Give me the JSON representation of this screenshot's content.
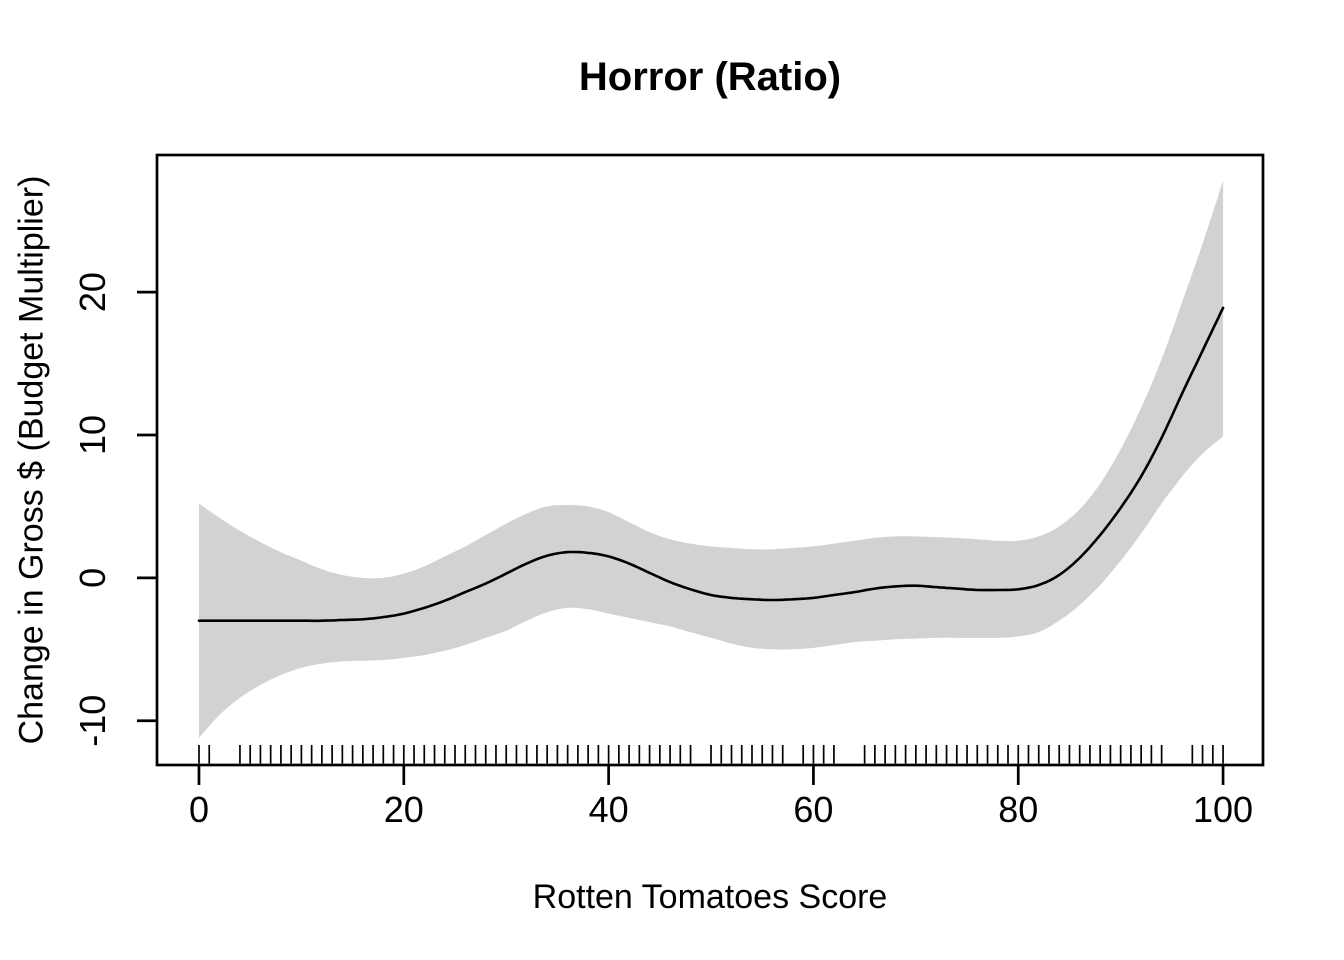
{
  "chart_data": {
    "type": "line",
    "subtype": "gam-smooth-with-confidence-band-and-rug",
    "title": "Horror (Ratio)",
    "xlabel": "Rotten Tomatoes Score",
    "ylabel": "Change in Gross $ (Budget Multiplier)",
    "x_ticks": [
      0,
      20,
      40,
      60,
      80,
      100
    ],
    "y_ticks": [
      -10,
      0,
      10,
      20
    ],
    "xlim": [
      -4.1,
      103.9
    ],
    "ylim": [
      -13.1,
      29.6
    ],
    "grid": false,
    "legend": "none",
    "x": [
      0,
      2,
      4,
      6,
      8,
      10,
      12,
      14,
      16,
      18,
      20,
      22,
      24,
      26,
      28,
      30,
      32,
      34,
      36,
      38,
      40,
      42,
      44,
      46,
      48,
      50,
      52,
      54,
      56,
      58,
      60,
      62,
      64,
      66,
      68,
      70,
      72,
      74,
      76,
      78,
      80,
      82,
      84,
      86,
      88,
      90,
      92,
      94,
      96,
      98,
      100
    ],
    "series": [
      {
        "name": "fitted smooth",
        "values": [
          -3.0,
          -3.0,
          -3.0,
          -3.0,
          -3.0,
          -3.0,
          -3.0,
          -2.95,
          -2.9,
          -2.75,
          -2.5,
          -2.1,
          -1.6,
          -1.0,
          -0.4,
          0.3,
          1.0,
          1.55,
          1.8,
          1.75,
          1.5,
          1.0,
          0.35,
          -0.3,
          -0.8,
          -1.2,
          -1.4,
          -1.5,
          -1.55,
          -1.5,
          -1.4,
          -1.2,
          -1.0,
          -0.75,
          -0.6,
          -0.55,
          -0.65,
          -0.75,
          -0.85,
          -0.85,
          -0.8,
          -0.5,
          0.2,
          1.4,
          3.0,
          4.9,
          7.1,
          9.8,
          12.9,
          15.9,
          18.9
        ]
      },
      {
        "name": "upper 95% CI",
        "values": [
          5.2,
          4.2,
          3.3,
          2.5,
          1.8,
          1.2,
          0.6,
          0.2,
          0.0,
          0.0,
          0.3,
          0.8,
          1.5,
          2.2,
          3.0,
          3.8,
          4.5,
          5.0,
          5.1,
          5.0,
          4.6,
          3.9,
          3.2,
          2.7,
          2.4,
          2.2,
          2.1,
          2.0,
          2.0,
          2.1,
          2.2,
          2.4,
          2.6,
          2.8,
          2.9,
          2.9,
          2.85,
          2.8,
          2.7,
          2.6,
          2.6,
          2.9,
          3.6,
          4.8,
          6.6,
          9.0,
          11.9,
          15.3,
          19.3,
          23.4,
          27.8
        ]
      },
      {
        "name": "lower 95% CI",
        "values": [
          -11.2,
          -9.6,
          -8.4,
          -7.5,
          -6.8,
          -6.3,
          -6.0,
          -5.85,
          -5.8,
          -5.75,
          -5.6,
          -5.4,
          -5.1,
          -4.7,
          -4.2,
          -3.7,
          -3.0,
          -2.4,
          -2.1,
          -2.2,
          -2.5,
          -2.8,
          -3.1,
          -3.4,
          -3.8,
          -4.2,
          -4.6,
          -4.9,
          -5.0,
          -5.0,
          -4.9,
          -4.7,
          -4.5,
          -4.4,
          -4.3,
          -4.25,
          -4.2,
          -4.2,
          -4.2,
          -4.2,
          -4.1,
          -3.8,
          -3.0,
          -1.9,
          -0.5,
          1.2,
          3.1,
          5.2,
          7.1,
          8.7,
          9.9
        ]
      }
    ],
    "rug_x": [
      0,
      1,
      4,
      5,
      6,
      7,
      8,
      9,
      10,
      11,
      12,
      13,
      14,
      15,
      16,
      17,
      18,
      19,
      20,
      21,
      22,
      23,
      24,
      25,
      26,
      27,
      28,
      29,
      30,
      31,
      32,
      33,
      34,
      35,
      36,
      37,
      38,
      39,
      40,
      41,
      42,
      43,
      44,
      45,
      46,
      47,
      48,
      50,
      51,
      52,
      53,
      54,
      55,
      56,
      57,
      59,
      60,
      61,
      62,
      65,
      66,
      67,
      68,
      69,
      70,
      71,
      72,
      73,
      74,
      75,
      76,
      77,
      78,
      79,
      80,
      81,
      82,
      83,
      84,
      85,
      86,
      87,
      88,
      89,
      90,
      91,
      92,
      93,
      94,
      97,
      98,
      99,
      100
    ],
    "colors": {
      "line": "#000000",
      "band": "#d2d2d2",
      "axis": "#000000",
      "text": "#000000",
      "background": "#ffffff"
    }
  }
}
